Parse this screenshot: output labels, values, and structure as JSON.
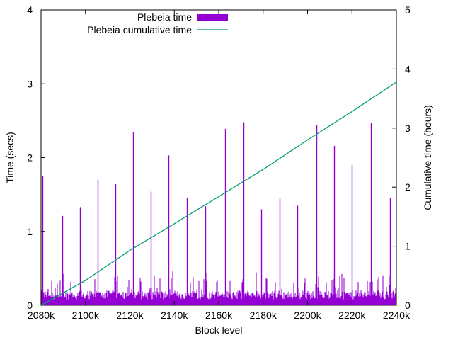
{
  "chart_data": {
    "type": "bar+line",
    "xlabel": "Block level",
    "ylabel_left": "Time (secs)",
    "ylabel_right": "Cumulative time (hours)",
    "xlim": [
      2080000,
      2240000
    ],
    "ylim_left": [
      0,
      4
    ],
    "ylim_right": [
      0,
      5
    ],
    "x_ticks": [
      {
        "value": 2080000,
        "label": "2080k"
      },
      {
        "value": 2100000,
        "label": "2100k"
      },
      {
        "value": 2120000,
        "label": "2120k"
      },
      {
        "value": 2140000,
        "label": "2140k"
      },
      {
        "value": 2160000,
        "label": "2160k"
      },
      {
        "value": 2180000,
        "label": "2180k"
      },
      {
        "value": 2200000,
        "label": "2200k"
      },
      {
        "value": 2220000,
        "label": "2220k"
      },
      {
        "value": 2240000,
        "label": "2240k"
      }
    ],
    "y_left_ticks": [
      {
        "value": 0,
        "label": "0"
      },
      {
        "value": 1,
        "label": "1"
      },
      {
        "value": 2,
        "label": "2"
      },
      {
        "value": 3,
        "label": "3"
      },
      {
        "value": 4,
        "label": "4"
      }
    ],
    "y_right_ticks": [
      {
        "value": 0,
        "label": "0"
      },
      {
        "value": 1,
        "label": "1"
      },
      {
        "value": 2,
        "label": "2"
      },
      {
        "value": 3,
        "label": "3"
      },
      {
        "value": 4,
        "label": "4"
      },
      {
        "value": 5,
        "label": "5"
      }
    ],
    "grid": false,
    "legend_position": "top-left",
    "series": [
      {
        "name": "Plebeia time",
        "kind": "impulses",
        "axis": "left",
        "color": "#9400d3",
        "baseline_band": [
          0.08,
          0.2
        ],
        "spikes": [
          {
            "x": 2080500,
            "y": 1.75
          },
          {
            "x": 2089500,
            "y": 1.21
          },
          {
            "x": 2097500,
            "y": 1.33
          },
          {
            "x": 2105500,
            "y": 1.7
          },
          {
            "x": 2113500,
            "y": 1.64
          },
          {
            "x": 2121500,
            "y": 2.35
          },
          {
            "x": 2129500,
            "y": 1.54
          },
          {
            "x": 2137500,
            "y": 2.03
          },
          {
            "x": 2145500,
            "y": 1.45
          },
          {
            "x": 2154000,
            "y": 1.34
          },
          {
            "x": 2163000,
            "y": 2.39
          },
          {
            "x": 2171000,
            "y": 2.48
          },
          {
            "x": 2179000,
            "y": 1.3
          },
          {
            "x": 2187500,
            "y": 1.45
          },
          {
            "x": 2195500,
            "y": 1.35
          },
          {
            "x": 2204000,
            "y": 2.44
          },
          {
            "x": 2212000,
            "y": 2.16
          },
          {
            "x": 2220000,
            "y": 1.9
          },
          {
            "x": 2228500,
            "y": 2.47
          },
          {
            "x": 2237000,
            "y": 1.45
          }
        ]
      },
      {
        "name": "Plebeia cumulative time",
        "kind": "line",
        "axis": "right",
        "color": "#009e73",
        "points": [
          {
            "x": 2080000,
            "y": 0.0
          },
          {
            "x": 2100000,
            "y": 0.42
          },
          {
            "x": 2120000,
            "y": 0.93
          },
          {
            "x": 2140000,
            "y": 1.38
          },
          {
            "x": 2160000,
            "y": 1.84
          },
          {
            "x": 2180000,
            "y": 2.3
          },
          {
            "x": 2200000,
            "y": 2.8
          },
          {
            "x": 2220000,
            "y": 3.28
          },
          {
            "x": 2240000,
            "y": 3.78
          }
        ]
      }
    ]
  }
}
